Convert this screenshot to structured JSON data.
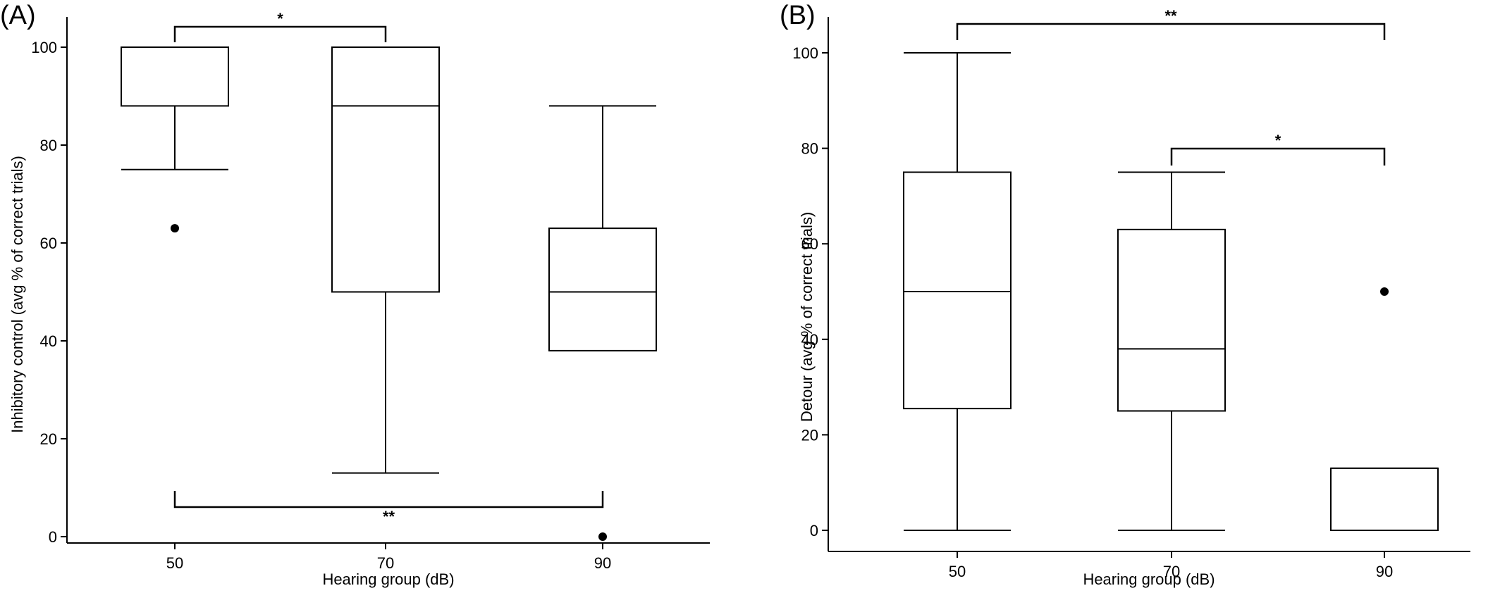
{
  "chart_data": [
    {
      "type": "box",
      "panel_label": "(A)",
      "xlabel": "Hearing group (dB)",
      "ylabel": "Inhibitory control (avg % of correct trials)",
      "categories": [
        "50",
        "70",
        "90"
      ],
      "ylim": [
        0,
        107
      ],
      "yticks": [
        "0",
        "20",
        "40",
        "60",
        "80",
        "100"
      ],
      "grid": false,
      "boxes": [
        {
          "category": "50",
          "whisker_low": 75,
          "q1": 88,
          "median": 100,
          "q3": 100,
          "whisker_high": 100,
          "outliers": [
            63
          ]
        },
        {
          "category": "70",
          "whisker_low": 13,
          "q1": 50,
          "median": 88,
          "q3": 100,
          "whisker_high": 100,
          "outliers": []
        },
        {
          "category": "90",
          "whisker_low": 38,
          "q1": 38,
          "median": 50,
          "q3": 63,
          "whisker_high": 88,
          "outliers": [
            0
          ]
        }
      ],
      "significance": [
        {
          "from": "50",
          "to": "70",
          "label": "*",
          "position": "top"
        },
        {
          "from": "50",
          "to": "90",
          "label": "**",
          "position": "bottom"
        }
      ]
    },
    {
      "type": "box",
      "panel_label": "(B)",
      "xlabel": "Hearing group (dB)",
      "ylabel": "Detour (avg % of correct trials)",
      "categories": [
        "50",
        "70",
        "90"
      ],
      "ylim": [
        -3,
        107
      ],
      "yticks": [
        "0",
        "20",
        "40",
        "60",
        "80",
        "100"
      ],
      "grid": false,
      "boxes": [
        {
          "category": "50",
          "whisker_low": 0,
          "q1": 25.5,
          "median": 50,
          "q3": 75,
          "whisker_high": 100,
          "outliers": []
        },
        {
          "category": "70",
          "whisker_low": 0,
          "q1": 25,
          "median": 38,
          "q3": 63,
          "whisker_high": 75,
          "outliers": []
        },
        {
          "category": "90",
          "whisker_low": 0,
          "q1": 0,
          "median": 0,
          "q3": 13,
          "whisker_high": 13,
          "outliers": [
            50
          ]
        }
      ],
      "significance": [
        {
          "from": "50",
          "to": "90",
          "label": "**",
          "position": "top"
        },
        {
          "from": "70",
          "to": "90",
          "label": "*",
          "position": "top"
        }
      ]
    }
  ]
}
